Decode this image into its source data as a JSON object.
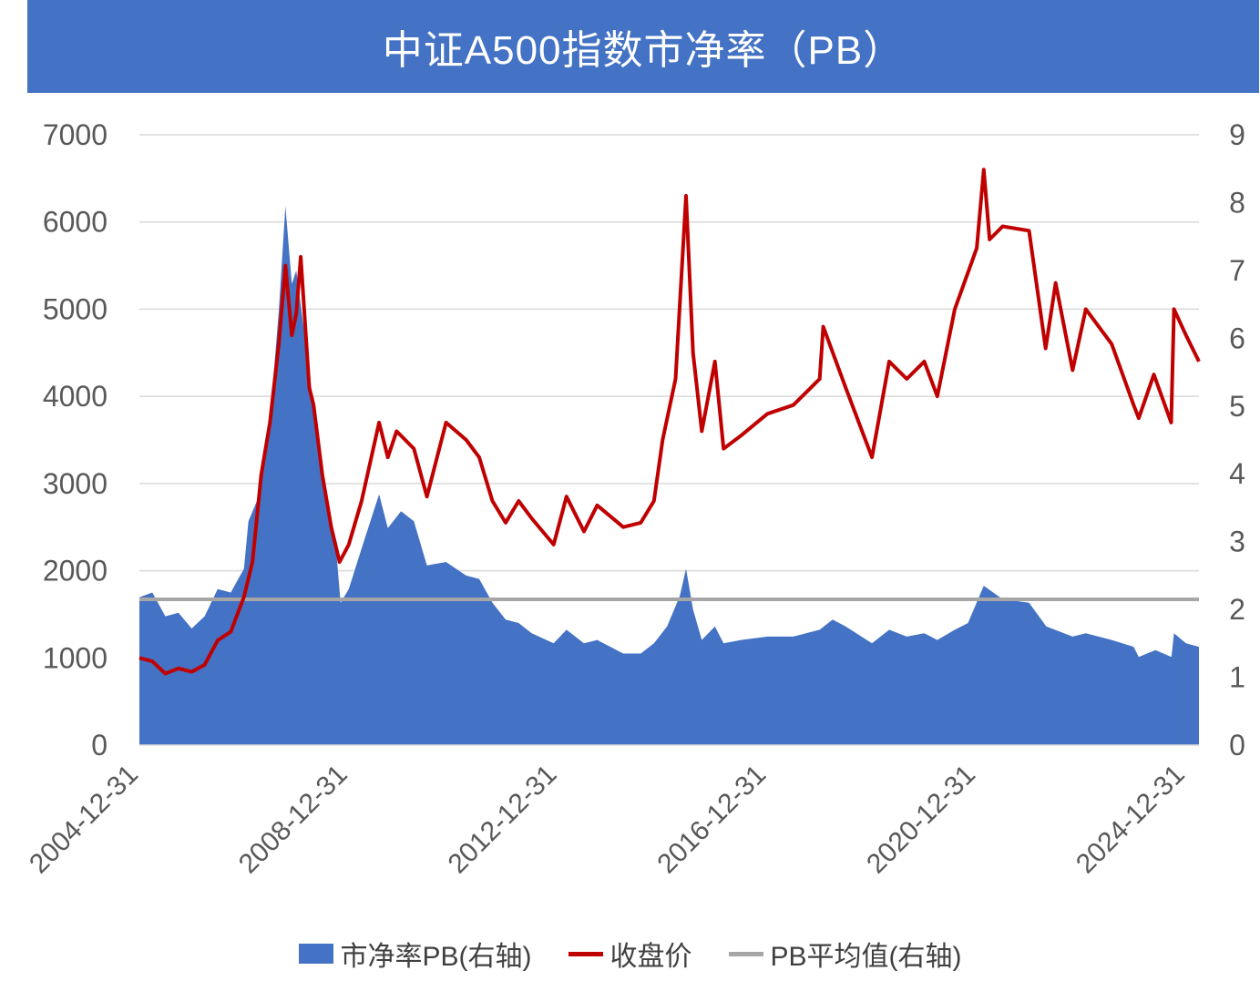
{
  "title": "中证A500指数市净率（PB）",
  "legend": {
    "pb": "市净率PB(右轴)",
    "close": "收盘价",
    "pb_avg": "PB平均值(右轴)"
  },
  "colors": {
    "title_bg": "#4472c4",
    "pb_area": "#4472c4",
    "close_line": "#c00000",
    "avg_line": "#a6a6a6",
    "grid": "#d9d9d9"
  },
  "chart_data": {
    "type": "line+area",
    "title": "中证A500指数市净率（PB）",
    "x_ticks": [
      "2004-12-31",
      "2008-12-31",
      "2012-12-31",
      "2016-12-31",
      "2020-12-31",
      "2024-12-31"
    ],
    "x_range": [
      "2004-12-31",
      "2025-03-31"
    ],
    "y_left": {
      "range": [
        0,
        7000
      ],
      "ticks": [
        0,
        1000,
        2000,
        3000,
        4000,
        5000,
        6000,
        7000
      ]
    },
    "y_right": {
      "range": [
        0,
        9
      ],
      "ticks": [
        0,
        1,
        2,
        3,
        4,
        5,
        6,
        7,
        8,
        9
      ]
    },
    "grid": true,
    "legend_position": "bottom",
    "series": [
      {
        "name": "市净率PB(右轴)",
        "type": "area",
        "axis": "right",
        "points": [
          [
            "2004-12-31",
            2.18
          ],
          [
            "2005-03-31",
            2.25
          ],
          [
            "2005-06-30",
            1.9
          ],
          [
            "2005-09-30",
            1.95
          ],
          [
            "2005-12-31",
            1.72
          ],
          [
            "2006-03-31",
            1.9
          ],
          [
            "2006-06-30",
            2.3
          ],
          [
            "2006-09-30",
            2.25
          ],
          [
            "2006-12-31",
            2.6
          ],
          [
            "2007-01-31",
            3.3
          ],
          [
            "2007-03-31",
            3.6
          ],
          [
            "2007-05-31",
            4.4
          ],
          [
            "2007-06-30",
            4.8
          ],
          [
            "2007-08-31",
            6.4
          ],
          [
            "2007-10-16",
            7.95
          ],
          [
            "2007-11-30",
            6.8
          ],
          [
            "2007-12-31",
            7.0
          ],
          [
            "2008-03-31",
            5.5
          ],
          [
            "2008-06-30",
            4.0
          ],
          [
            "2008-09-30",
            3.0
          ],
          [
            "2008-11-04",
            2.1
          ],
          [
            "2008-12-31",
            2.3
          ],
          [
            "2009-03-31",
            2.9
          ],
          [
            "2009-07-31",
            3.7
          ],
          [
            "2009-09-30",
            3.2
          ],
          [
            "2009-12-31",
            3.45
          ],
          [
            "2010-03-31",
            3.3
          ],
          [
            "2010-06-30",
            2.65
          ],
          [
            "2010-11-10",
            2.7
          ],
          [
            "2011-03-31",
            2.5
          ],
          [
            "2011-06-30",
            2.45
          ],
          [
            "2011-09-30",
            2.1
          ],
          [
            "2011-12-31",
            1.85
          ],
          [
            "2012-03-31",
            1.8
          ],
          [
            "2012-06-30",
            1.65
          ],
          [
            "2012-11-30",
            1.5
          ],
          [
            "2013-02-28",
            1.7
          ],
          [
            "2013-06-30",
            1.5
          ],
          [
            "2013-09-30",
            1.55
          ],
          [
            "2014-03-31",
            1.35
          ],
          [
            "2014-07-31",
            1.35
          ],
          [
            "2014-10-31",
            1.5
          ],
          [
            "2015-01-31",
            1.75
          ],
          [
            "2015-04-30",
            2.2
          ],
          [
            "2015-06-12",
            2.6
          ],
          [
            "2015-07-31",
            2.0
          ],
          [
            "2015-09-30",
            1.55
          ],
          [
            "2015-12-31",
            1.75
          ],
          [
            "2016-02-29",
            1.5
          ],
          [
            "2016-06-30",
            1.55
          ],
          [
            "2016-12-31",
            1.6
          ],
          [
            "2017-06-30",
            1.6
          ],
          [
            "2017-12-31",
            1.7
          ],
          [
            "2018-03-31",
            1.85
          ],
          [
            "2018-06-30",
            1.75
          ],
          [
            "2018-12-31",
            1.5
          ],
          [
            "2019-04-30",
            1.7
          ],
          [
            "2019-08-31",
            1.6
          ],
          [
            "2019-12-31",
            1.65
          ],
          [
            "2020-03-31",
            1.55
          ],
          [
            "2020-07-31",
            1.7
          ],
          [
            "2020-10-31",
            1.8
          ],
          [
            "2021-02-18",
            2.35
          ],
          [
            "2021-06-30",
            2.15
          ],
          [
            "2021-12-31",
            2.1
          ],
          [
            "2022-04-30",
            1.75
          ],
          [
            "2022-10-31",
            1.6
          ],
          [
            "2023-01-31",
            1.65
          ],
          [
            "2023-07-31",
            1.55
          ],
          [
            "2023-12-31",
            1.45
          ],
          [
            "2024-02-05",
            1.3
          ],
          [
            "2024-05-31",
            1.4
          ],
          [
            "2024-09-20",
            1.3
          ],
          [
            "2024-10-08",
            1.65
          ],
          [
            "2024-12-31",
            1.5
          ],
          [
            "2025-03-31",
            1.45
          ]
        ]
      },
      {
        "name": "收盘价",
        "type": "line",
        "axis": "left",
        "points": [
          [
            "2004-12-31",
            1000
          ],
          [
            "2005-03-31",
            960
          ],
          [
            "2005-06-30",
            820
          ],
          [
            "2005-09-30",
            880
          ],
          [
            "2005-12-31",
            840
          ],
          [
            "2006-03-31",
            920
          ],
          [
            "2006-06-30",
            1200
          ],
          [
            "2006-09-30",
            1300
          ],
          [
            "2006-12-31",
            1700
          ],
          [
            "2007-02-28",
            2100
          ],
          [
            "2007-04-30",
            3100
          ],
          [
            "2007-06-30",
            3700
          ],
          [
            "2007-08-31",
            4600
          ],
          [
            "2007-10-16",
            5500
          ],
          [
            "2007-11-30",
            4700
          ],
          [
            "2007-12-31",
            4950
          ],
          [
            "2008-01-31",
            5600
          ],
          [
            "2008-03-31",
            4100
          ],
          [
            "2008-04-30",
            3900
          ],
          [
            "2008-06-30",
            3100
          ],
          [
            "2008-08-31",
            2500
          ],
          [
            "2008-10-28",
            2100
          ],
          [
            "2008-12-31",
            2300
          ],
          [
            "2009-03-31",
            2800
          ],
          [
            "2009-07-31",
            3700
          ],
          [
            "2009-09-30",
            3300
          ],
          [
            "2009-11-30",
            3600
          ],
          [
            "2010-03-31",
            3400
          ],
          [
            "2010-06-30",
            2850
          ],
          [
            "2010-11-10",
            3700
          ],
          [
            "2011-03-31",
            3500
          ],
          [
            "2011-06-30",
            3300
          ],
          [
            "2011-09-30",
            2800
          ],
          [
            "2011-12-31",
            2550
          ],
          [
            "2012-03-31",
            2800
          ],
          [
            "2012-06-30",
            2600
          ],
          [
            "2012-11-30",
            2300
          ],
          [
            "2013-02-28",
            2850
          ],
          [
            "2013-06-30",
            2450
          ],
          [
            "2013-09-30",
            2750
          ],
          [
            "2014-03-31",
            2500
          ],
          [
            "2014-07-31",
            2550
          ],
          [
            "2014-10-31",
            2800
          ],
          [
            "2014-12-31",
            3500
          ],
          [
            "2015-03-31",
            4200
          ],
          [
            "2015-06-12",
            6300
          ],
          [
            "2015-07-31",
            4500
          ],
          [
            "2015-09-30",
            3600
          ],
          [
            "2015-12-31",
            4400
          ],
          [
            "2016-02-29",
            3400
          ],
          [
            "2016-06-30",
            3550
          ],
          [
            "2016-12-31",
            3800
          ],
          [
            "2017-06-30",
            3900
          ],
          [
            "2017-12-31",
            4200
          ],
          [
            "2018-01-25",
            4800
          ],
          [
            "2018-06-30",
            4100
          ],
          [
            "2018-12-31",
            3300
          ],
          [
            "2019-04-30",
            4400
          ],
          [
            "2019-08-31",
            4200
          ],
          [
            "2019-12-31",
            4400
          ],
          [
            "2020-03-31",
            4000
          ],
          [
            "2020-07-31",
            5000
          ],
          [
            "2020-12-31",
            5700
          ],
          [
            "2021-02-18",
            6600
          ],
          [
            "2021-03-31",
            5800
          ],
          [
            "2021-06-30",
            5950
          ],
          [
            "2021-12-31",
            5900
          ],
          [
            "2022-04-26",
            4550
          ],
          [
            "2022-07-05",
            5300
          ],
          [
            "2022-10-31",
            4300
          ],
          [
            "2023-01-31",
            5000
          ],
          [
            "2023-07-31",
            4600
          ],
          [
            "2023-12-31",
            3900
          ],
          [
            "2024-02-05",
            3750
          ],
          [
            "2024-05-20",
            4250
          ],
          [
            "2024-09-18",
            3700
          ],
          [
            "2024-10-08",
            5000
          ],
          [
            "2024-12-31",
            4700
          ],
          [
            "2025-03-31",
            4400
          ]
        ]
      },
      {
        "name": "PB平均值(右轴)",
        "type": "line",
        "axis": "right",
        "points": [
          [
            "2004-12-31",
            2.15
          ],
          [
            "2025-03-31",
            2.15
          ]
        ]
      }
    ]
  }
}
